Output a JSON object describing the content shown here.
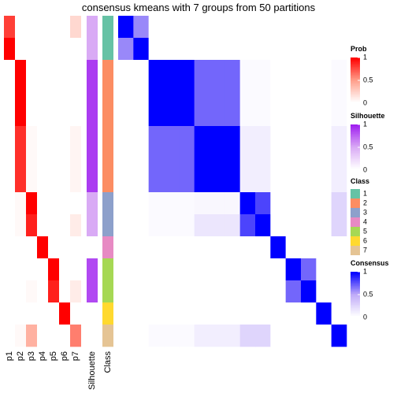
{
  "chart_data": {
    "type": "heatmap",
    "title": "consensus kmeans with 7 groups from 50 partitions",
    "prob": {
      "title": "Prob",
      "columns": [
        "p1",
        "p2",
        "p3",
        "p4",
        "p5",
        "p6",
        "p7"
      ],
      "colors": [
        "#ffffff",
        "#ff9e8a",
        "#ff0000"
      ],
      "ticks": [
        0,
        0.5,
        1
      ],
      "values": [
        [
          0.8,
          0,
          0,
          0,
          0,
          0,
          0.2
        ],
        [
          1,
          0,
          0,
          0,
          0,
          0,
          0
        ],
        [
          0,
          1,
          0,
          0,
          0,
          0,
          0
        ],
        [
          0,
          1,
          0,
          0,
          0,
          0,
          0
        ],
        [
          0,
          1,
          0,
          0,
          0,
          0,
          0
        ],
        [
          0,
          0.85,
          0.03,
          0,
          0,
          0,
          0.05
        ],
        [
          0,
          0.85,
          0.03,
          0,
          0,
          0,
          0.05
        ],
        [
          0,
          0.85,
          0.03,
          0,
          0,
          0,
          0.05
        ],
        [
          0,
          0.03,
          1,
          0,
          0,
          0,
          0
        ],
        [
          0,
          0.03,
          0.9,
          0,
          0,
          0,
          0.1
        ],
        [
          0,
          0,
          0,
          1,
          0,
          0,
          0
        ],
        [
          0,
          0,
          0,
          0,
          1,
          0,
          0
        ],
        [
          0,
          0,
          0.03,
          0,
          0.9,
          0,
          0.1
        ],
        [
          0,
          0,
          0,
          0,
          0,
          1,
          0
        ],
        [
          0,
          0.03,
          0.4,
          0,
          0,
          0,
          0.6
        ]
      ]
    },
    "silhouette": {
      "title": "Silhouette",
      "label": "Silhouette",
      "colors": [
        "#ffffff",
        "#d9aaf5",
        "#a020f0"
      ],
      "ticks": [
        0,
        0.5,
        1
      ],
      "values": [
        0.5,
        0.5,
        0.9,
        0.9,
        0.9,
        0.9,
        0.9,
        0.9,
        0.5,
        0.5,
        0,
        0.85,
        0.85,
        0,
        0
      ]
    },
    "class": {
      "title": "Class",
      "label": "Class",
      "levels": [
        1,
        2,
        3,
        4,
        5,
        6,
        7
      ],
      "colors": [
        "#66C2A5",
        "#FC8D62",
        "#8DA0CB",
        "#E78AC3",
        "#A6D854",
        "#FFD92F",
        "#E5C494"
      ],
      "values": [
        1,
        1,
        2,
        2,
        2,
        2,
        2,
        2,
        3,
        3,
        4,
        5,
        5,
        6,
        7
      ]
    },
    "consensus": {
      "title": "Consensus",
      "colors": [
        "#ffffff",
        "#bfaaf8",
        "#0000ff"
      ],
      "ticks": [
        0,
        0.5,
        1
      ],
      "values": [
        [
          1,
          0.6,
          0,
          0,
          0,
          0,
          0,
          0,
          0,
          0,
          0,
          0,
          0,
          0,
          0
        ],
        [
          0.6,
          1,
          0,
          0,
          0,
          0,
          0,
          0,
          0,
          0,
          0,
          0,
          0,
          0,
          0
        ],
        [
          0,
          0,
          1,
          1,
          1,
          0.7,
          0.7,
          0.7,
          0.03,
          0.03,
          0,
          0,
          0,
          0,
          0.03
        ],
        [
          0,
          0,
          1,
          1,
          1,
          0.7,
          0.7,
          0.7,
          0.03,
          0.03,
          0,
          0,
          0,
          0,
          0.03
        ],
        [
          0,
          0,
          1,
          1,
          1,
          0.7,
          0.7,
          0.7,
          0.03,
          0.03,
          0,
          0,
          0,
          0,
          0.03
        ],
        [
          0,
          0,
          0.7,
          0.7,
          0.7,
          1,
          1,
          1,
          0.1,
          0.1,
          0,
          0,
          0,
          0,
          0.1
        ],
        [
          0,
          0,
          0.7,
          0.7,
          0.7,
          1,
          1,
          1,
          0.1,
          0.1,
          0,
          0,
          0,
          0,
          0.1
        ],
        [
          0,
          0,
          0.7,
          0.7,
          0.7,
          1,
          1,
          1,
          0.1,
          0.1,
          0,
          0,
          0,
          0,
          0.1
        ],
        [
          0,
          0,
          0.03,
          0.03,
          0.03,
          0.05,
          0.05,
          0.05,
          1,
          0.8,
          0,
          0,
          0,
          0,
          0.25
        ],
        [
          0,
          0,
          0.03,
          0.03,
          0.03,
          0.15,
          0.15,
          0.15,
          0.8,
          1,
          0,
          0,
          0,
          0,
          0.25
        ],
        [
          0,
          0,
          0,
          0,
          0,
          0,
          0,
          0,
          0,
          0,
          1,
          0,
          0,
          0,
          0
        ],
        [
          0,
          0,
          0,
          0,
          0,
          0,
          0,
          0,
          0,
          0,
          0,
          1,
          0.7,
          0,
          0
        ],
        [
          0,
          0,
          0,
          0,
          0,
          0,
          0,
          0,
          0,
          0,
          0,
          0.7,
          1,
          0,
          0
        ],
        [
          0,
          0,
          0,
          0,
          0,
          0,
          0,
          0,
          0,
          0,
          0,
          0,
          0,
          1,
          0
        ],
        [
          0,
          0,
          0.03,
          0.03,
          0.03,
          0.1,
          0.1,
          0.1,
          0.25,
          0.25,
          0,
          0,
          0,
          0,
          1
        ]
      ]
    }
  }
}
